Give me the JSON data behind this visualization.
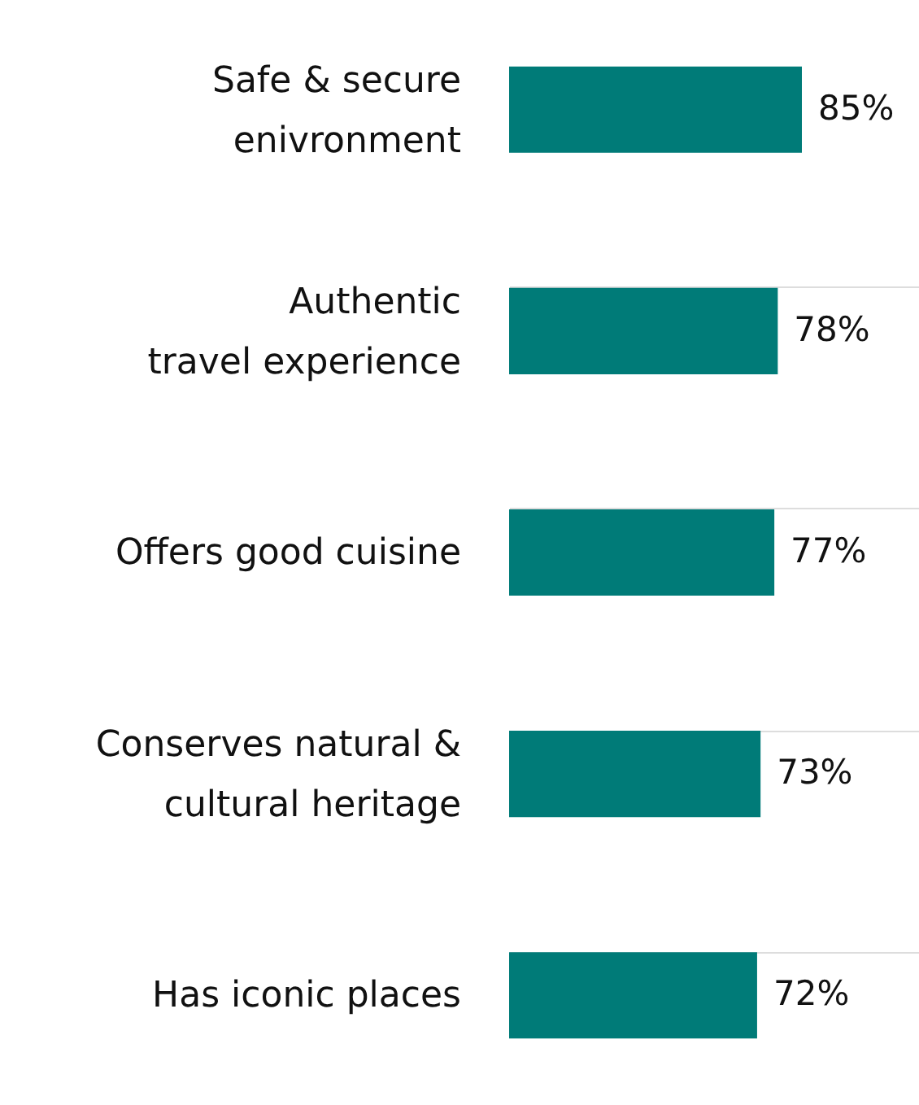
{
  "chart_data": {
    "type": "bar",
    "orientation": "horizontal",
    "categories": [
      "Safe & secure\nenivronment",
      "Authentic\ntravel experience",
      "Offers good cuisine",
      "Conserves natural &\ncultural heritage",
      "Has iconic places"
    ],
    "values": [
      85,
      78,
      77,
      73,
      72
    ],
    "value_labels": [
      "85%",
      "78%",
      "77%",
      "73%",
      "72%"
    ],
    "color": "#007b78",
    "grid": "y"
  }
}
